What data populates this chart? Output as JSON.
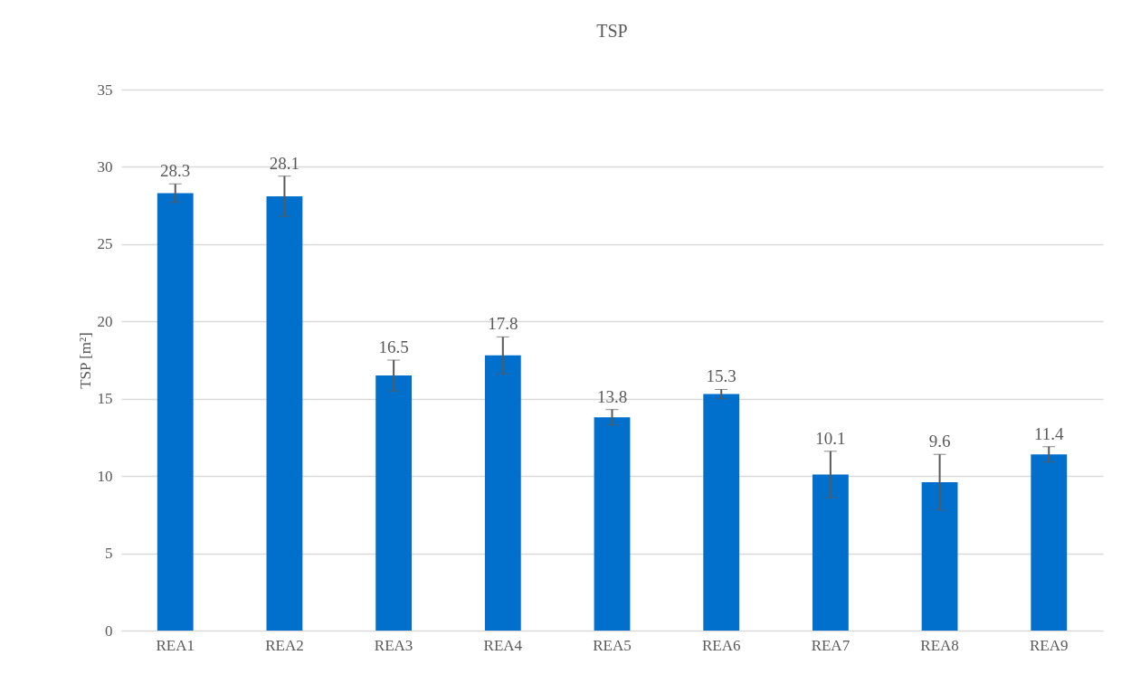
{
  "chart_data": {
    "type": "bar",
    "title": "TSP",
    "ylabel": "TSP [m²]",
    "categories": [
      "REA1",
      "REA2",
      "REA3",
      "REA4",
      "REA5",
      "REA6",
      "REA7",
      "REA8",
      "REA9"
    ],
    "values": [
      28.3,
      28.1,
      16.5,
      17.8,
      13.8,
      15.3,
      10.1,
      9.6,
      11.4
    ],
    "errors": [
      0.6,
      1.3,
      1.0,
      1.2,
      0.5,
      0.3,
      1.5,
      1.8,
      0.5
    ],
    "color": "#0070cc",
    "ylim": [
      0,
      35
    ],
    "yticks": [
      0,
      5,
      10,
      15,
      20,
      25,
      30,
      35
    ],
    "grid": "y",
    "data_labels": true
  }
}
